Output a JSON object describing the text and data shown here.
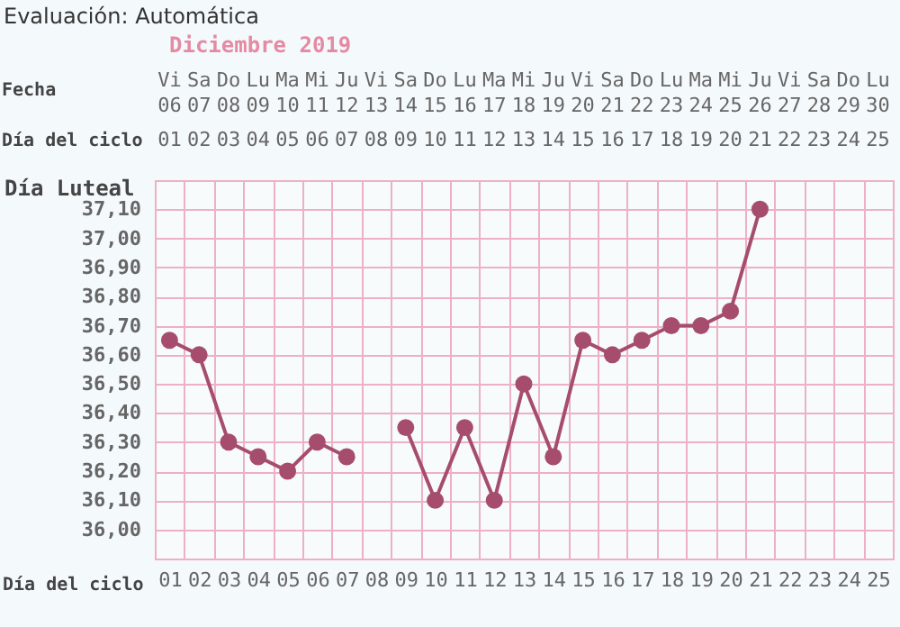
{
  "chart_data": {
    "type": "line",
    "title": "Evaluación: Automática",
    "subtitle": "Diciembre 2019",
    "xlabel": "Día del ciclo",
    "ylabel": "Día Luteal",
    "categories": [
      "01",
      "02",
      "03",
      "04",
      "05",
      "06",
      "07",
      "08",
      "09",
      "10",
      "11",
      "12",
      "13",
      "14",
      "15",
      "16",
      "17",
      "18",
      "19",
      "20",
      "21",
      "22",
      "23",
      "24",
      "25"
    ],
    "series": [
      {
        "color": "#a64d6e",
        "values": [
          36.65,
          36.6,
          36.3,
          36.25,
          36.2,
          36.3,
          36.25,
          null,
          36.35,
          36.1,
          36.35,
          36.1,
          36.5,
          36.25,
          36.65,
          36.6,
          36.65,
          36.7,
          36.7,
          36.75,
          37.1,
          null,
          null,
          null,
          null
        ]
      }
    ],
    "annotations": [
      "Fecha",
      "Día del ciclo",
      "Vi 06",
      "Sa 07",
      "Do 08",
      "Lu 09",
      "Ma 10",
      "Mi 11",
      "Ju 12",
      "Vi 13",
      "Sa 14",
      "Do 15",
      "Lu 16",
      "Ma 17",
      "Mi 18",
      "Ju 19",
      "Vi 20",
      "Sa 21",
      "Do 22",
      "Lu 23",
      "Ma 24",
      "Mi 25",
      "Ju 26",
      "Vi 27",
      "Sa 28",
      "Do 29",
      "Lu 30"
    ],
    "ylim": [
      35.9,
      37.2
    ],
    "yticks": [
      {
        "value": 36.0,
        "label": "36,00"
      },
      {
        "value": 36.1,
        "label": "36,10"
      },
      {
        "value": 36.2,
        "label": "36,20"
      },
      {
        "value": 36.3,
        "label": "36,30"
      },
      {
        "value": 36.4,
        "label": "36,40"
      },
      {
        "value": 36.5,
        "label": "36,50"
      },
      {
        "value": 36.6,
        "label": "36,60"
      },
      {
        "value": 36.7,
        "label": "36,70"
      },
      {
        "value": 36.8,
        "label": "36,80"
      },
      {
        "value": 36.9,
        "label": "36,90"
      },
      {
        "value": 37.0,
        "label": "37,00"
      },
      {
        "value": 37.1,
        "label": "37,10"
      }
    ],
    "grid": true,
    "marker": "circle",
    "line_style": "solid"
  }
}
